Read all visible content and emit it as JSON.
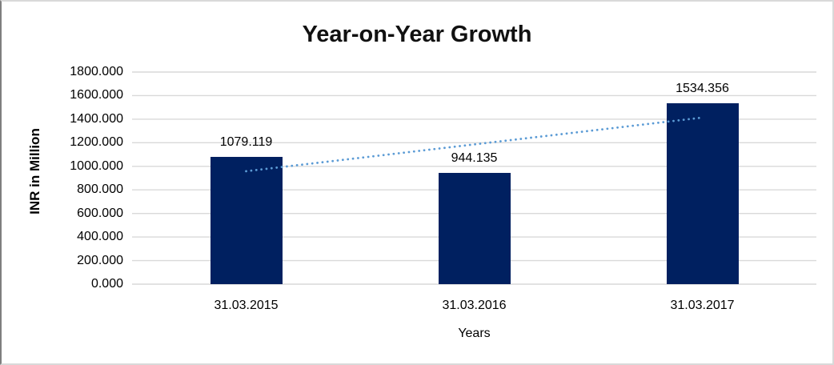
{
  "title": "Year-on-Year Growth",
  "axes": {
    "y_title": "INR in Million",
    "x_title": "Years"
  },
  "chart_data": {
    "type": "bar",
    "title": "Year-on-Year Growth",
    "xlabel": "Years",
    "ylabel": "INR in Million",
    "categories": [
      "31.03.2015",
      "31.03.2016",
      "31.03.2017"
    ],
    "values": [
      1079.119,
      944.135,
      1534.356
    ],
    "data_labels": [
      "1079.119",
      "944.135",
      "1534.356"
    ],
    "ylim": [
      0,
      1800
    ],
    "ytick_step": 200,
    "ytick_labels": [
      "1800.000",
      "1600.000",
      "1400.000",
      "1200.000",
      "1000.000",
      "800.000",
      "600.000",
      "400.000",
      "200.000",
      "0.000"
    ],
    "grid": true,
    "legend": "none",
    "bar_color": "#002060",
    "gridline_color": "#d9d9d9",
    "trendline": {
      "type": "linear",
      "style": "dotted",
      "color": "#5b9bd5"
    }
  }
}
